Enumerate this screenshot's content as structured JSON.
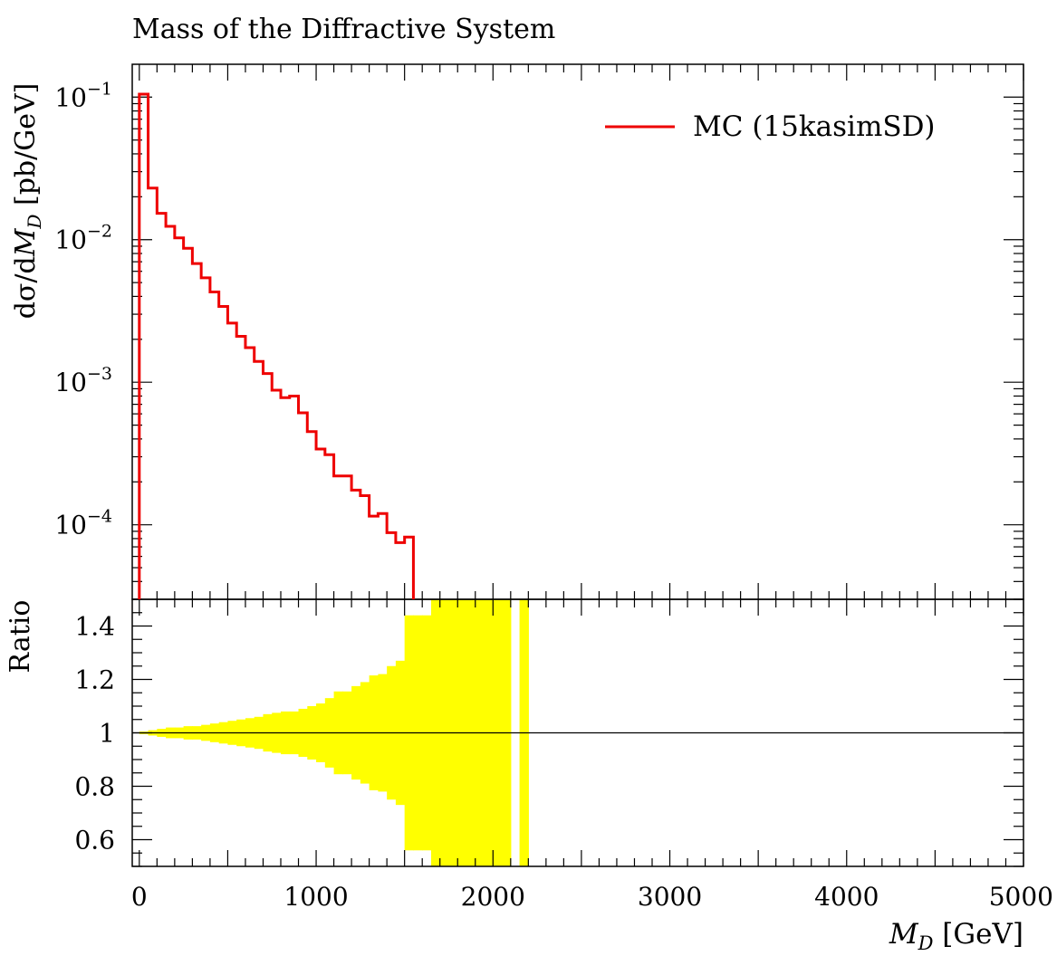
{
  "title": "Mass of the Diffractive System",
  "legend": {
    "label": "MC (15kasimSD)",
    "color": "#ee0000",
    "placement": "top-right"
  },
  "colors": {
    "mc_line": "#ee0000",
    "ratio_band": "#ffff00",
    "axes": "#000000"
  },
  "chart_data": [
    {
      "type": "line",
      "panel": "main",
      "title": "Mass of the Diffractive System",
      "xlabel": "M_D [GeV]",
      "ylabel": "dσ/dM_D [pb/GeV]",
      "yscale": "log",
      "xlim": [
        -40,
        5000
      ],
      "ylim": [
        3e-05,
        0.17
      ],
      "yticks": [
        {
          "value": 0.1,
          "base": "10",
          "exp": "−1"
        },
        {
          "value": 0.01,
          "base": "10",
          "exp": "−2"
        },
        {
          "value": 0.001,
          "base": "10",
          "exp": "−3"
        },
        {
          "value": 0.0001,
          "base": "10",
          "exp": "−4"
        }
      ],
      "series": [
        {
          "name": "MC (15kasimSD)",
          "bin_edges": [
            0,
            50,
            100,
            150,
            200,
            250,
            300,
            350,
            400,
            450,
            500,
            550,
            600,
            650,
            700,
            750,
            800,
            850,
            900,
            950,
            1000,
            1050,
            1100,
            1150,
            1200,
            1250,
            1300,
            1350,
            1400,
            1450,
            1500,
            1550
          ],
          "values": [
            0.105,
            0.023,
            0.0153,
            0.0124,
            0.0103,
            0.0087,
            0.0068,
            0.0054,
            0.0043,
            0.0034,
            0.0026,
            0.0021,
            0.00175,
            0.0014,
            0.00115,
            0.00088,
            0.00078,
            0.0008,
            0.00061,
            0.00045,
            0.00034,
            0.00031,
            0.00022,
            0.00022,
            0.000175,
            0.00016,
            0.000115,
            0.00012,
            8.8e-05,
            7.5e-05,
            8.2e-05
          ]
        }
      ]
    },
    {
      "type": "area",
      "panel": "ratio",
      "xlabel": "M_D [GeV]",
      "ylabel": "Ratio",
      "xlim": [
        -40,
        5000
      ],
      "ylim": [
        0.5,
        1.5
      ],
      "xticks": [
        0,
        1000,
        2000,
        3000,
        4000,
        5000
      ],
      "yticks": [
        0.6,
        0.8,
        1,
        1.2,
        1.4
      ],
      "reference_line": 1,
      "band": {
        "bin_edges": [
          0,
          50,
          100,
          150,
          200,
          250,
          300,
          350,
          400,
          450,
          500,
          550,
          600,
          650,
          700,
          750,
          800,
          850,
          900,
          950,
          1000,
          1050,
          1100,
          1150,
          1200,
          1250,
          1300,
          1350,
          1400,
          1450,
          1500,
          1550,
          1600,
          1650,
          1700,
          1750,
          1800,
          1850,
          1900,
          1950,
          2000,
          2050,
          2100,
          2150,
          2200,
          2250
        ],
        "upper": [
          1.005,
          1.01,
          1.015,
          1.02,
          1.02,
          1.025,
          1.025,
          1.03,
          1.035,
          1.04,
          1.045,
          1.05,
          1.055,
          1.06,
          1.07,
          1.075,
          1.08,
          1.08,
          1.09,
          1.1,
          1.11,
          1.13,
          1.155,
          1.155,
          1.175,
          1.19,
          1.215,
          1.22,
          1.25,
          1.27,
          1.44,
          1.44,
          1.44,
          1.5,
          1.5,
          1.5,
          1.5,
          1.5,
          1.5,
          1.5,
          1.5,
          1.5,
          null,
          1.5,
          null
        ],
        "lower": [
          0.995,
          0.99,
          0.985,
          0.98,
          0.98,
          0.975,
          0.975,
          0.97,
          0.965,
          0.96,
          0.955,
          0.95,
          0.945,
          0.94,
          0.93,
          0.925,
          0.92,
          0.92,
          0.91,
          0.9,
          0.89,
          0.87,
          0.845,
          0.845,
          0.825,
          0.81,
          0.785,
          0.78,
          0.75,
          0.73,
          0.56,
          0.56,
          0.56,
          0.5,
          0.5,
          0.5,
          0.5,
          0.5,
          0.5,
          0.5,
          0.5,
          0.5,
          null,
          0.5,
          null
        ]
      }
    }
  ]
}
